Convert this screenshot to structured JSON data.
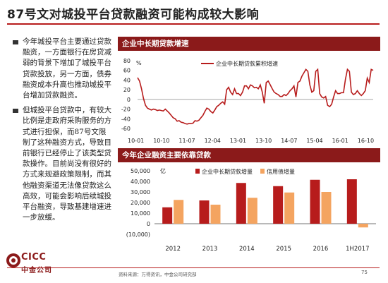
{
  "page": {
    "title": "87号文对城投平台贷款融资可能构成较大影响",
    "source": "资料来源：万得资讯，中金公司研究部",
    "page_number": "75",
    "logo_text": "CICC",
    "logo_sub": "中金公司"
  },
  "bullets": [
    "今年城投平台主要通过贷款融资，一方面银行在房贷减弱的背景下增加了城投平台贷款投放，另一方面，债券融资成本升高也推动城投平台增加贷款融资。",
    "但城投平台贷款中，有较大比例是走政府采购服务的方式进行担保，而87号文限制了这种融资方式，导致目前银行已经停止了该类型贷款操作。目前尚没有很好的方式来规避政策限制，而其他融资渠道无法像贷款这么高效，可能会影响后续城投平台融资，导致基建增速进一步放缓。"
  ],
  "panels": {
    "line_title": "企业中长期贷款增速",
    "bar_title": "今年企业融资主要依靠贷款"
  },
  "chart_data": [
    {
      "type": "line",
      "ylabel": "%",
      "ylim": [
        -60,
        80
      ],
      "yticks": [
        "80",
        "60",
        "40",
        "20",
        "0",
        "-20",
        "-40",
        "-60"
      ],
      "xtick_labels": [
        "10-01",
        "10-10",
        "11-07",
        "12-04",
        "13-01",
        "13-10",
        "14-07",
        "15-04",
        "16-01",
        "16-10"
      ],
      "legend": "企业中长期贷款累积增速",
      "color": "#b71c1c",
      "series": [
        {
          "name": "企业中长期贷款累积增速",
          "values": [
            45,
            38,
            22,
            2,
            -12,
            -18,
            -20,
            -22,
            -20,
            -21,
            -23,
            -22,
            -23,
            -24,
            -20,
            -24,
            -28,
            -33,
            -38,
            -40,
            -45,
            -44,
            -47,
            -48,
            -50,
            -51,
            -50,
            -50,
            -49,
            -44,
            -45,
            -43,
            -38,
            -33,
            -25,
            -18,
            -20,
            -25,
            -28,
            -22,
            -15,
            -12,
            -8,
            -5,
            -10,
            20,
            25,
            15,
            10,
            22,
            12,
            12,
            8,
            15,
            28,
            28,
            22,
            30,
            28,
            24,
            25,
            22,
            30,
            15,
            -8,
            35,
            38,
            30,
            22,
            15,
            12,
            10,
            6,
            6,
            10,
            8,
            12,
            18,
            22,
            28,
            5,
            35,
            38,
            48,
            55,
            62,
            58,
            30,
            15,
            18,
            58,
            62,
            12,
            5,
            3,
            6,
            -12,
            -15,
            -10,
            5,
            18,
            12,
            12,
            14,
            14,
            42,
            62,
            58,
            15,
            10,
            12,
            18,
            12,
            8,
            12,
            18,
            44,
            35,
            62,
            60
          ]
        }
      ]
    },
    {
      "type": "bar",
      "ylabel": "亿",
      "ylim": [
        -10000,
        50000
      ],
      "yticks": [
        "50,000",
        "40,000",
        "30,000",
        "20,000",
        "10,000",
        "0",
        "(10,000)"
      ],
      "categories": [
        "2012",
        "2013",
        "2014",
        "2015",
        "2016",
        "1H2017"
      ],
      "series": [
        {
          "name": "企业中长期贷款增量",
          "color": "#b71c1c",
          "values": [
            15500,
            22000,
            38500,
            35500,
            41500,
            42000
          ]
        },
        {
          "name": "信用债增量",
          "color": "#f4a460",
          "values": [
            22500,
            18000,
            24500,
            29500,
            30000,
            -3500
          ]
        }
      ]
    }
  ]
}
